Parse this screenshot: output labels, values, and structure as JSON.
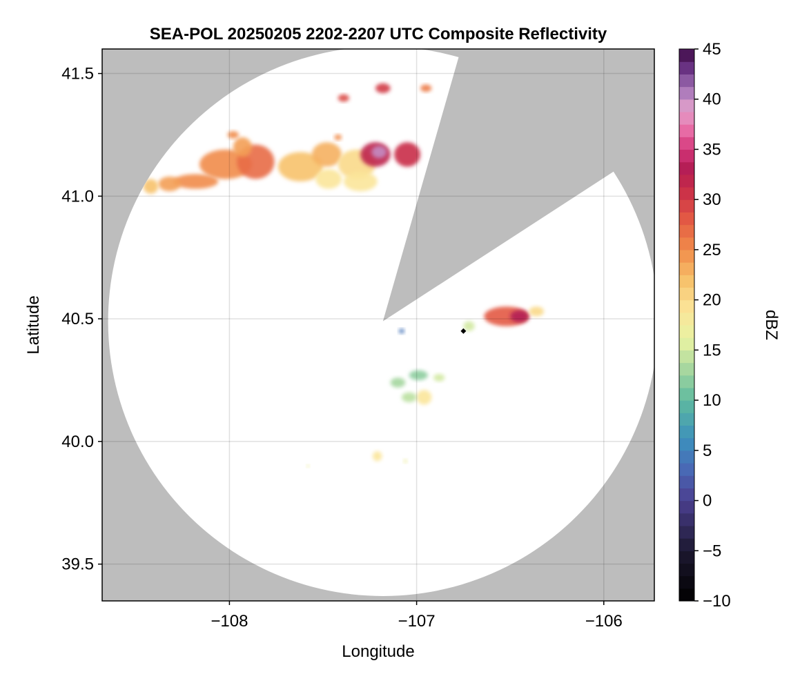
{
  "chart_data": {
    "type": "heatmap",
    "title": "SEA-POL 20250205 2202-2207 UTC Composite Reflectivity",
    "xlabel": "Longitude",
    "ylabel": "Latitude",
    "xlim": [
      -108.68,
      -105.73
    ],
    "ylim": [
      39.35,
      41.6
    ],
    "xticks": [
      -108,
      -107,
      -106
    ],
    "xtick_labels": [
      "−108",
      "−107",
      "−106"
    ],
    "yticks": [
      39.5,
      40.0,
      40.5,
      41.0,
      41.5
    ],
    "ytick_labels": [
      "39.5",
      "40.0",
      "40.5",
      "41.0",
      "41.5"
    ],
    "grid": true,
    "background_color": "#bdbdbd",
    "coverage_color": "#ffffff",
    "radar": {
      "center": [
        -107.18,
        40.49
      ],
      "range_lat_deg": 1.12,
      "blanked_sector_degrees": [
        16,
        57
      ]
    },
    "colorbar": {
      "label": "dBZ",
      "range": [
        -10,
        45
      ],
      "ticks": [
        -10,
        -5,
        0,
        5,
        10,
        15,
        20,
        25,
        30,
        35,
        40,
        45
      ],
      "tick_labels": [
        "−10",
        "−5",
        "0",
        "5",
        "10",
        "15",
        "20",
        "25",
        "30",
        "35",
        "40",
        "45"
      ],
      "colormap": "Spectral (reversed) with purple top",
      "stops": [
        {
          "v": -10,
          "color": "#000000"
        },
        {
          "v": -5,
          "color": "#1c1830"
        },
        {
          "v": 0,
          "color": "#4b3f8f"
        },
        {
          "v": 3,
          "color": "#4a67b5"
        },
        {
          "v": 6,
          "color": "#3c8fbd"
        },
        {
          "v": 10,
          "color": "#5eba9f"
        },
        {
          "v": 13,
          "color": "#a4d69f"
        },
        {
          "v": 16,
          "color": "#e7f3a2"
        },
        {
          "v": 19,
          "color": "#fbe59a"
        },
        {
          "v": 22,
          "color": "#f7c26b"
        },
        {
          "v": 25,
          "color": "#f18c4a"
        },
        {
          "v": 28,
          "color": "#e35a44"
        },
        {
          "v": 31,
          "color": "#c92d48"
        },
        {
          "v": 33,
          "color": "#b31c54"
        },
        {
          "v": 35,
          "color": "#d3367a"
        },
        {
          "v": 37,
          "color": "#e86fa8"
        },
        {
          "v": 39,
          "color": "#e3a1cc"
        },
        {
          "v": 41,
          "color": "#a475b8"
        },
        {
          "v": 43,
          "color": "#6c3586"
        },
        {
          "v": 45,
          "color": "#3d0a45"
        }
      ]
    },
    "echo_cells": [
      {
        "lon": -108.02,
        "lat": 41.13,
        "dlon": 0.14,
        "dlat": 0.06,
        "dbz": 25
      },
      {
        "lon": -107.86,
        "lat": 41.14,
        "dlon": 0.1,
        "dlat": 0.07,
        "dbz": 27
      },
      {
        "lon": -107.93,
        "lat": 41.2,
        "dlon": 0.05,
        "dlat": 0.04,
        "dbz": 24
      },
      {
        "lon": -108.18,
        "lat": 41.06,
        "dlon": 0.12,
        "dlat": 0.03,
        "dbz": 25
      },
      {
        "lon": -108.32,
        "lat": 41.05,
        "dlon": 0.06,
        "dlat": 0.03,
        "dbz": 24
      },
      {
        "lon": -108.42,
        "lat": 41.04,
        "dlon": 0.04,
        "dlat": 0.03,
        "dbz": 22
      },
      {
        "lon": -107.62,
        "lat": 41.12,
        "dlon": 0.12,
        "dlat": 0.06,
        "dbz": 22
      },
      {
        "lon": -107.48,
        "lat": 41.17,
        "dlon": 0.08,
        "dlat": 0.05,
        "dbz": 23
      },
      {
        "lon": -107.47,
        "lat": 41.07,
        "dlon": 0.07,
        "dlat": 0.04,
        "dbz": 19
      },
      {
        "lon": -107.32,
        "lat": 41.13,
        "dlon": 0.1,
        "dlat": 0.06,
        "dbz": 20
      },
      {
        "lon": -107.22,
        "lat": 41.17,
        "dlon": 0.08,
        "dlat": 0.05,
        "dbz": 32
      },
      {
        "lon": -107.2,
        "lat": 41.18,
        "dlon": 0.04,
        "dlat": 0.025,
        "dbz": 40
      },
      {
        "lon": -107.05,
        "lat": 41.17,
        "dlon": 0.07,
        "dlat": 0.05,
        "dbz": 31
      },
      {
        "lon": -107.3,
        "lat": 41.06,
        "dlon": 0.09,
        "dlat": 0.04,
        "dbz": 19
      },
      {
        "lon": -107.18,
        "lat": 41.44,
        "dlon": 0.04,
        "dlat": 0.02,
        "dbz": 30
      },
      {
        "lon": -107.39,
        "lat": 41.4,
        "dlon": 0.03,
        "dlat": 0.015,
        "dbz": 29
      },
      {
        "lon": -106.95,
        "lat": 41.44,
        "dlon": 0.03,
        "dlat": 0.015,
        "dbz": 26
      },
      {
        "lon": -107.98,
        "lat": 41.25,
        "dlon": 0.03,
        "dlat": 0.015,
        "dbz": 25
      },
      {
        "lon": -107.42,
        "lat": 41.24,
        "dlon": 0.02,
        "dlat": 0.012,
        "dbz": 25
      },
      {
        "lon": -106.52,
        "lat": 40.51,
        "dlon": 0.12,
        "dlat": 0.04,
        "dbz": 28
      },
      {
        "lon": -106.45,
        "lat": 40.51,
        "dlon": 0.05,
        "dlat": 0.025,
        "dbz": 33
      },
      {
        "lon": -106.36,
        "lat": 40.53,
        "dlon": 0.04,
        "dlat": 0.02,
        "dbz": 20
      },
      {
        "lon": -106.72,
        "lat": 40.47,
        "dlon": 0.03,
        "dlat": 0.02,
        "dbz": 15
      },
      {
        "lon": -107.08,
        "lat": 40.45,
        "dlon": 0.015,
        "dlat": 0.01,
        "dbz": 4
      },
      {
        "lon": -106.99,
        "lat": 40.27,
        "dlon": 0.05,
        "dlat": 0.02,
        "dbz": 12
      },
      {
        "lon": -107.1,
        "lat": 40.24,
        "dlon": 0.04,
        "dlat": 0.02,
        "dbz": 13
      },
      {
        "lon": -106.96,
        "lat": 40.18,
        "dlon": 0.04,
        "dlat": 0.03,
        "dbz": 19
      },
      {
        "lon": -107.04,
        "lat": 40.18,
        "dlon": 0.04,
        "dlat": 0.02,
        "dbz": 14
      },
      {
        "lon": -106.88,
        "lat": 40.26,
        "dlon": 0.03,
        "dlat": 0.015,
        "dbz": 15
      },
      {
        "lon": -107.21,
        "lat": 39.94,
        "dlon": 0.025,
        "dlat": 0.02,
        "dbz": 19
      },
      {
        "lon": -107.06,
        "lat": 39.92,
        "dlon": 0.01,
        "dlat": 0.008,
        "dbz": 17
      },
      {
        "lon": -107.58,
        "lat": 39.9,
        "dlon": 0.008,
        "dlat": 0.006,
        "dbz": 17
      }
    ],
    "markers": [
      {
        "lon": -106.75,
        "lat": 40.45,
        "color": "#000000",
        "shape": "diamond"
      }
    ]
  }
}
